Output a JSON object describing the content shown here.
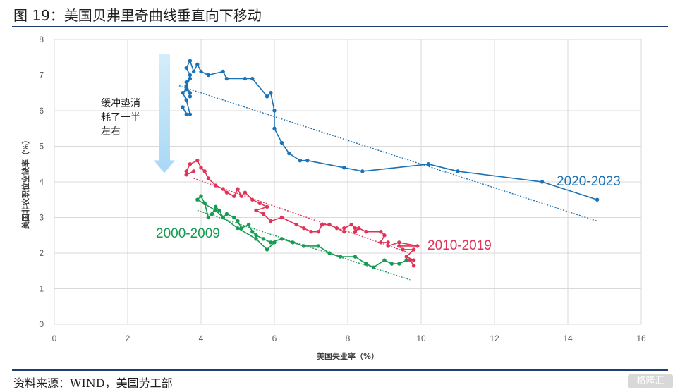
{
  "page": {
    "title": "图 19：美国贝弗里奇曲线垂直向下移动",
    "source": "资料来源：WIND，美国劳工部",
    "watermark": "格隆汇"
  },
  "chart_data": {
    "type": "scatter",
    "title": "",
    "xlabel": "美国失业率（%）",
    "ylabel": "美国非农职位空缺率（%）",
    "xlim": [
      0,
      16
    ],
    "ylim": [
      0,
      8
    ],
    "x_ticks": [
      "0",
      "2",
      "4",
      "6",
      "8",
      "10",
      "12",
      "14",
      "16"
    ],
    "y_ticks": [
      "0",
      "1",
      "2",
      "3",
      "4",
      "5",
      "6",
      "7",
      "8"
    ],
    "grid": "vertical and horizontal",
    "annotation": {
      "lines": [
        "缓冲垫消",
        "耗了一半",
        "左右"
      ],
      "arrow_color": "#bfe3f8",
      "arrow_from": [
        3.0,
        7.6
      ],
      "arrow_to": [
        3.0,
        4.25
      ]
    },
    "series": [
      {
        "name": "2020-2023",
        "color": "#1b72b5",
        "points": [
          [
            3.5,
            6.1
          ],
          [
            3.6,
            5.9
          ],
          [
            3.7,
            5.9
          ],
          [
            3.6,
            6.3
          ],
          [
            3.5,
            6.5
          ],
          [
            3.6,
            6.6
          ],
          [
            3.7,
            6.5
          ],
          [
            3.6,
            6.7
          ],
          [
            3.7,
            6.4
          ],
          [
            3.6,
            6.8
          ],
          [
            3.7,
            6.9
          ],
          [
            3.6,
            6.7
          ],
          [
            3.7,
            7.0
          ],
          [
            3.6,
            7.2
          ],
          [
            3.7,
            7.4
          ],
          [
            3.8,
            7.1
          ],
          [
            3.9,
            7.3
          ],
          [
            4.0,
            7.1
          ],
          [
            4.2,
            7.0
          ],
          [
            4.6,
            7.1
          ],
          [
            4.7,
            6.9
          ],
          [
            5.2,
            6.9
          ],
          [
            5.4,
            6.9
          ],
          [
            5.8,
            6.4
          ],
          [
            5.9,
            6.5
          ],
          [
            6.0,
            6.0
          ],
          [
            6.0,
            5.5
          ],
          [
            6.2,
            5.1
          ],
          [
            6.4,
            4.8
          ],
          [
            6.7,
            4.6
          ],
          [
            6.9,
            4.6
          ],
          [
            7.9,
            4.4
          ],
          [
            8.4,
            4.3
          ],
          [
            10.2,
            4.5
          ],
          [
            11.0,
            4.3
          ],
          [
            13.3,
            4.0
          ],
          [
            14.8,
            3.5
          ]
        ],
        "trend": [
          [
            3.4,
            6.7
          ],
          [
            14.8,
            2.9
          ]
        ]
      },
      {
        "name": "2010-2019",
        "color": "#e03358",
        "points": [
          [
            9.8,
            1.65
          ],
          [
            9.7,
            1.8
          ],
          [
            9.8,
            1.8
          ],
          [
            9.6,
            1.9
          ],
          [
            9.8,
            2.1
          ],
          [
            9.5,
            2.1
          ],
          [
            9.4,
            2.2
          ],
          [
            9.9,
            2.2
          ],
          [
            9.4,
            2.3
          ],
          [
            9.1,
            2.2
          ],
          [
            9.1,
            2.3
          ],
          [
            8.9,
            2.3
          ],
          [
            9.0,
            2.5
          ],
          [
            8.9,
            2.6
          ],
          [
            8.5,
            2.6
          ],
          [
            8.3,
            2.7
          ],
          [
            8.2,
            2.6
          ],
          [
            8.2,
            2.7
          ],
          [
            8.1,
            2.8
          ],
          [
            7.9,
            2.7
          ],
          [
            7.9,
            2.6
          ],
          [
            7.7,
            2.7
          ],
          [
            7.5,
            2.8
          ],
          [
            7.3,
            2.8
          ],
          [
            7.2,
            2.6
          ],
          [
            7.0,
            2.6
          ],
          [
            6.8,
            2.7
          ],
          [
            6.6,
            2.8
          ],
          [
            6.2,
            3.0
          ],
          [
            5.9,
            2.9
          ],
          [
            5.7,
            3.1
          ],
          [
            5.5,
            3.2
          ],
          [
            5.8,
            3.3
          ],
          [
            5.6,
            3.4
          ],
          [
            5.4,
            3.5
          ],
          [
            5.2,
            3.7
          ],
          [
            5.1,
            3.6
          ],
          [
            5.0,
            3.8
          ],
          [
            4.9,
            3.6
          ],
          [
            4.7,
            3.7
          ],
          [
            4.6,
            3.8
          ],
          [
            4.4,
            3.9
          ],
          [
            4.2,
            4.1
          ],
          [
            4.1,
            4.3
          ],
          [
            4.0,
            4.4
          ],
          [
            3.9,
            4.6
          ],
          [
            3.7,
            4.5
          ],
          [
            3.6,
            4.3
          ],
          [
            3.6,
            4.2
          ],
          [
            3.8,
            4.3
          ]
        ],
        "trend": [
          [
            3.8,
            4.1
          ],
          [
            9.7,
            2.0
          ]
        ]
      },
      {
        "name": "2000-2009",
        "color": "#169b53",
        "points": [
          [
            9.6,
            1.8
          ],
          [
            9.4,
            1.7
          ],
          [
            9.2,
            1.7
          ],
          [
            9.0,
            1.8
          ],
          [
            8.7,
            1.6
          ],
          [
            8.5,
            1.7
          ],
          [
            8.2,
            1.9
          ],
          [
            7.8,
            1.9
          ],
          [
            7.5,
            2.0
          ],
          [
            7.2,
            2.2
          ],
          [
            6.8,
            2.2
          ],
          [
            6.5,
            2.3
          ],
          [
            6.2,
            2.4
          ],
          [
            5.9,
            2.3
          ],
          [
            5.7,
            2.4
          ],
          [
            5.5,
            2.5
          ],
          [
            5.4,
            2.6
          ],
          [
            5.3,
            2.8
          ],
          [
            5.1,
            2.7
          ],
          [
            5.0,
            2.9
          ],
          [
            4.9,
            3.0
          ],
          [
            4.7,
            3.1
          ],
          [
            4.6,
            3.0
          ],
          [
            4.5,
            3.2
          ],
          [
            4.4,
            3.3
          ],
          [
            4.3,
            3.1
          ],
          [
            4.2,
            3.0
          ],
          [
            4.1,
            3.4
          ],
          [
            4.0,
            3.6
          ],
          [
            3.9,
            3.5
          ],
          [
            4.4,
            3.2
          ],
          [
            4.6,
            3.0
          ],
          [
            5.0,
            2.7
          ],
          [
            5.5,
            2.4
          ],
          [
            5.8,
            2.1
          ],
          [
            6.0,
            2.3
          ]
        ],
        "trend": [
          [
            3.9,
            3.2
          ],
          [
            9.7,
            1.25
          ]
        ]
      }
    ],
    "series_label_positions": [
      "upper-right",
      "lower-right",
      "lower-left"
    ]
  }
}
